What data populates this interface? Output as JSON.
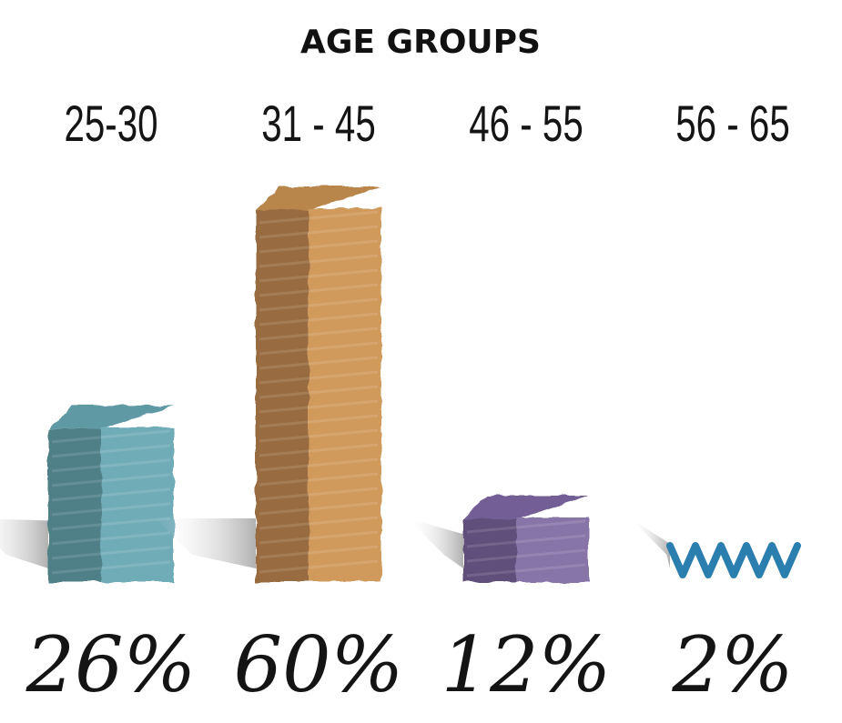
{
  "chart_data": {
    "type": "bar",
    "title": "AGE GROUPS",
    "categories": [
      "25-30",
      "31 - 45",
      "46 - 55",
      "56 - 65"
    ],
    "values": [
      26,
      60,
      12,
      2
    ],
    "value_labels": [
      "26%",
      "60%",
      "12%",
      "2%"
    ],
    "unit": "%",
    "ylim": [
      0,
      60
    ],
    "grid": false,
    "legend": "none",
    "colors": [
      {
        "front": "#6fabb8",
        "side": "#4f8088",
        "top": "#5e99a4"
      },
      {
        "front": "#d09a5c",
        "side": "#986c40",
        "top": "#b8854c"
      },
      {
        "front": "#8874a8",
        "side": "#5f4f7a",
        "top": "#735f96"
      },
      {
        "front": "#2a7fae",
        "side": "#1f6a94",
        "top": "#2478a8"
      }
    ]
  }
}
